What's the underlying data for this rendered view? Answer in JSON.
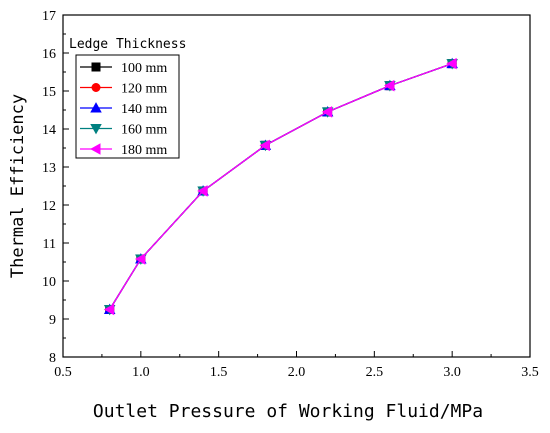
{
  "chart_data": {
    "type": "line",
    "title": "",
    "xlabel": "Outlet Pressure of Working Fluid/MPa",
    "ylabel": "Thermal Efficiency",
    "xlim": [
      0.5,
      3.5
    ],
    "ylim": [
      8,
      17
    ],
    "x_ticks": [
      "0.5",
      "1.0",
      "1.5",
      "2.0",
      "2.5",
      "3.0",
      "3.5"
    ],
    "y_ticks": [
      "8",
      "9",
      "10",
      "11",
      "12",
      "13",
      "14",
      "15",
      "16",
      "17"
    ],
    "grid": false,
    "legend": {
      "title": "Ledge Thickness",
      "placement": "top-left"
    },
    "x": [
      0.8,
      1.0,
      1.4,
      1.8,
      2.2,
      2.6,
      3.0
    ],
    "series": [
      {
        "name": "100 mm",
        "color": "#000000",
        "marker": "square",
        "values": [
          9.25,
          10.58,
          12.37,
          13.57,
          14.45,
          15.14,
          15.72
        ]
      },
      {
        "name": "120 mm",
        "color": "#ff0000",
        "marker": "circle",
        "values": [
          9.25,
          10.58,
          12.37,
          13.57,
          14.45,
          15.14,
          15.72
        ]
      },
      {
        "name": "140 mm",
        "color": "#0000ff",
        "marker": "triangle-up",
        "values": [
          9.25,
          10.58,
          12.37,
          13.57,
          14.45,
          15.14,
          15.72
        ]
      },
      {
        "name": "160 mm",
        "color": "#008080",
        "marker": "triangle-down",
        "values": [
          9.25,
          10.58,
          12.37,
          13.57,
          14.45,
          15.14,
          15.72
        ]
      },
      {
        "name": "180 mm",
        "color": "#ff00ff",
        "marker": "triangle-left",
        "values": [
          9.25,
          10.58,
          12.37,
          13.57,
          14.45,
          15.14,
          15.72
        ]
      }
    ]
  }
}
